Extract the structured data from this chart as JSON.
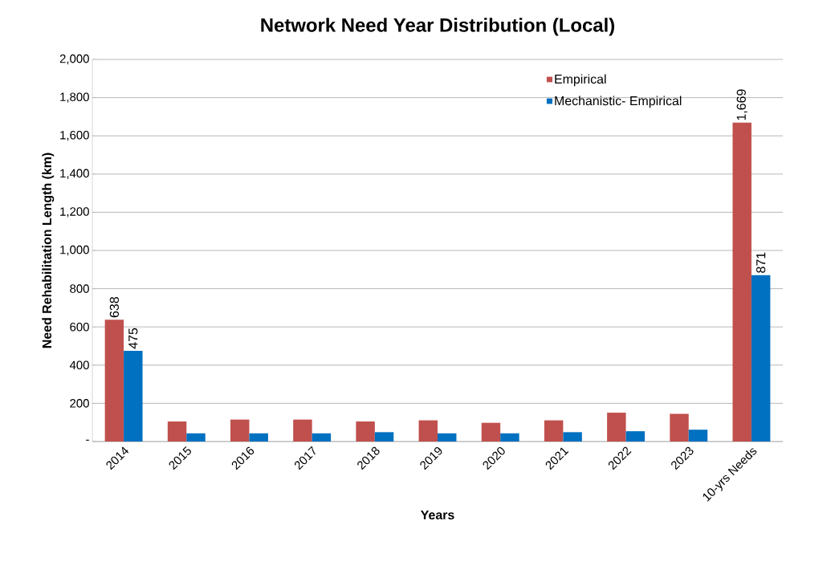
{
  "chart_data": {
    "type": "bar",
    "title": "Network Need Year Distribution  (Local)",
    "xlabel": "Years",
    "ylabel": "Need Rehabilitation Length (km)",
    "categories": [
      "2014",
      "2015",
      "2016",
      "2017",
      "2018",
      "2019",
      "2020",
      "2021",
      "2022",
      "2023",
      "10-yrs Needs"
    ],
    "series": [
      {
        "name": "Empirical",
        "color": "#c0504d",
        "values": [
          638,
          105,
          115,
          115,
          105,
          111,
          98,
          111,
          151,
          145,
          1669
        ],
        "value_labels": [
          "638",
          null,
          null,
          null,
          null,
          null,
          null,
          null,
          null,
          null,
          "1,669"
        ]
      },
      {
        "name": "Mechanistic- Empirical",
        "color": "#0070c0",
        "values": [
          475,
          43,
          43,
          43,
          49,
          43,
          43,
          49,
          54,
          62,
          871
        ],
        "value_labels": [
          "475",
          null,
          null,
          null,
          null,
          null,
          null,
          null,
          null,
          null,
          "871"
        ]
      }
    ],
    "ylim": [
      0,
      2000
    ],
    "yticks": [
      {
        "value": 0,
        "label": "-"
      },
      {
        "value": 200,
        "label": "200"
      },
      {
        "value": 400,
        "label": "400"
      },
      {
        "value": 600,
        "label": "600"
      },
      {
        "value": 800,
        "label": "800"
      },
      {
        "value": 1000,
        "label": "1,000"
      },
      {
        "value": 1200,
        "label": "1,200"
      },
      {
        "value": 1400,
        "label": "1,400"
      },
      {
        "value": 1600,
        "label": "1,600"
      },
      {
        "value": 1800,
        "label": "1,800"
      },
      {
        "value": 2000,
        "label": "2,000"
      }
    ],
    "grid": "y",
    "legend": "top right"
  }
}
